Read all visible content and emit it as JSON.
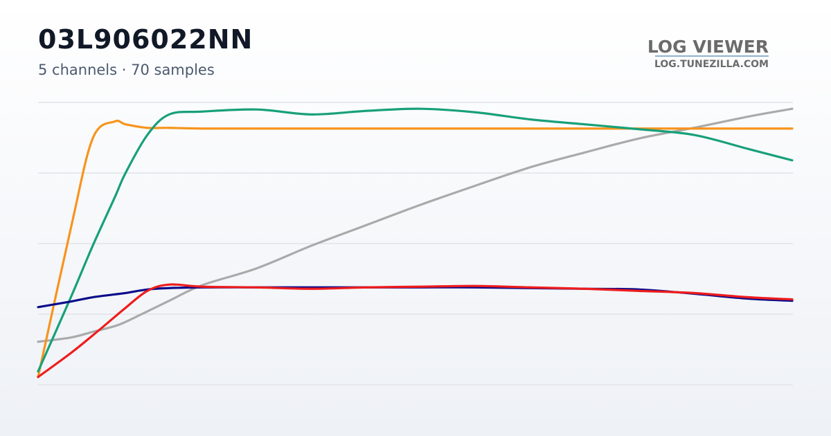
{
  "chart_data": {
    "type": "line",
    "title": "03L906022NN",
    "subtitle": "5 channels · 70 samples",
    "x": [
      0,
      3,
      5,
      7,
      8,
      10,
      12,
      15,
      20,
      25,
      30,
      35,
      40,
      45,
      50,
      55,
      60,
      65,
      69
    ],
    "xlim": [
      0,
      69
    ],
    "ylim": [
      0,
      4
    ],
    "yticks": [
      0,
      1,
      2,
      3,
      4
    ],
    "grid": true,
    "series": [
      {
        "color": "#aaaaaa",
        "values": [
          0.61,
          0.67,
          0.75,
          0.83,
          0.89,
          1.04,
          1.19,
          1.41,
          1.65,
          1.97,
          2.26,
          2.55,
          2.82,
          3.08,
          3.29,
          3.49,
          3.64,
          3.8,
          3.91
        ]
      },
      {
        "color": "#f7941d",
        "values": [
          0.11,
          2.22,
          3.49,
          3.73,
          3.69,
          3.64,
          3.64,
          3.63,
          3.63,
          3.63,
          3.63,
          3.63,
          3.63,
          3.63,
          3.63,
          3.63,
          3.63,
          3.63,
          3.63
        ]
      },
      {
        "color": "#17a07a",
        "values": [
          0.19,
          1.24,
          1.97,
          2.65,
          3.0,
          3.54,
          3.83,
          3.87,
          3.9,
          3.83,
          3.88,
          3.91,
          3.86,
          3.76,
          3.69,
          3.62,
          3.54,
          3.34,
          3.18
        ]
      },
      {
        "color": "#0b0b8a",
        "values": [
          1.1,
          1.18,
          1.24,
          1.28,
          1.3,
          1.35,
          1.37,
          1.38,
          1.38,
          1.38,
          1.38,
          1.38,
          1.38,
          1.37,
          1.36,
          1.35,
          1.29,
          1.22,
          1.19
        ]
      },
      {
        "color": "#ee1c1c",
        "values": [
          0.11,
          0.45,
          0.7,
          0.96,
          1.09,
          1.33,
          1.42,
          1.39,
          1.38,
          1.36,
          1.38,
          1.39,
          1.4,
          1.38,
          1.36,
          1.33,
          1.3,
          1.24,
          1.21
        ]
      }
    ]
  },
  "brand": {
    "name": "LOG VIEWER",
    "url": "LOG.TUNEZILLA.COM"
  }
}
